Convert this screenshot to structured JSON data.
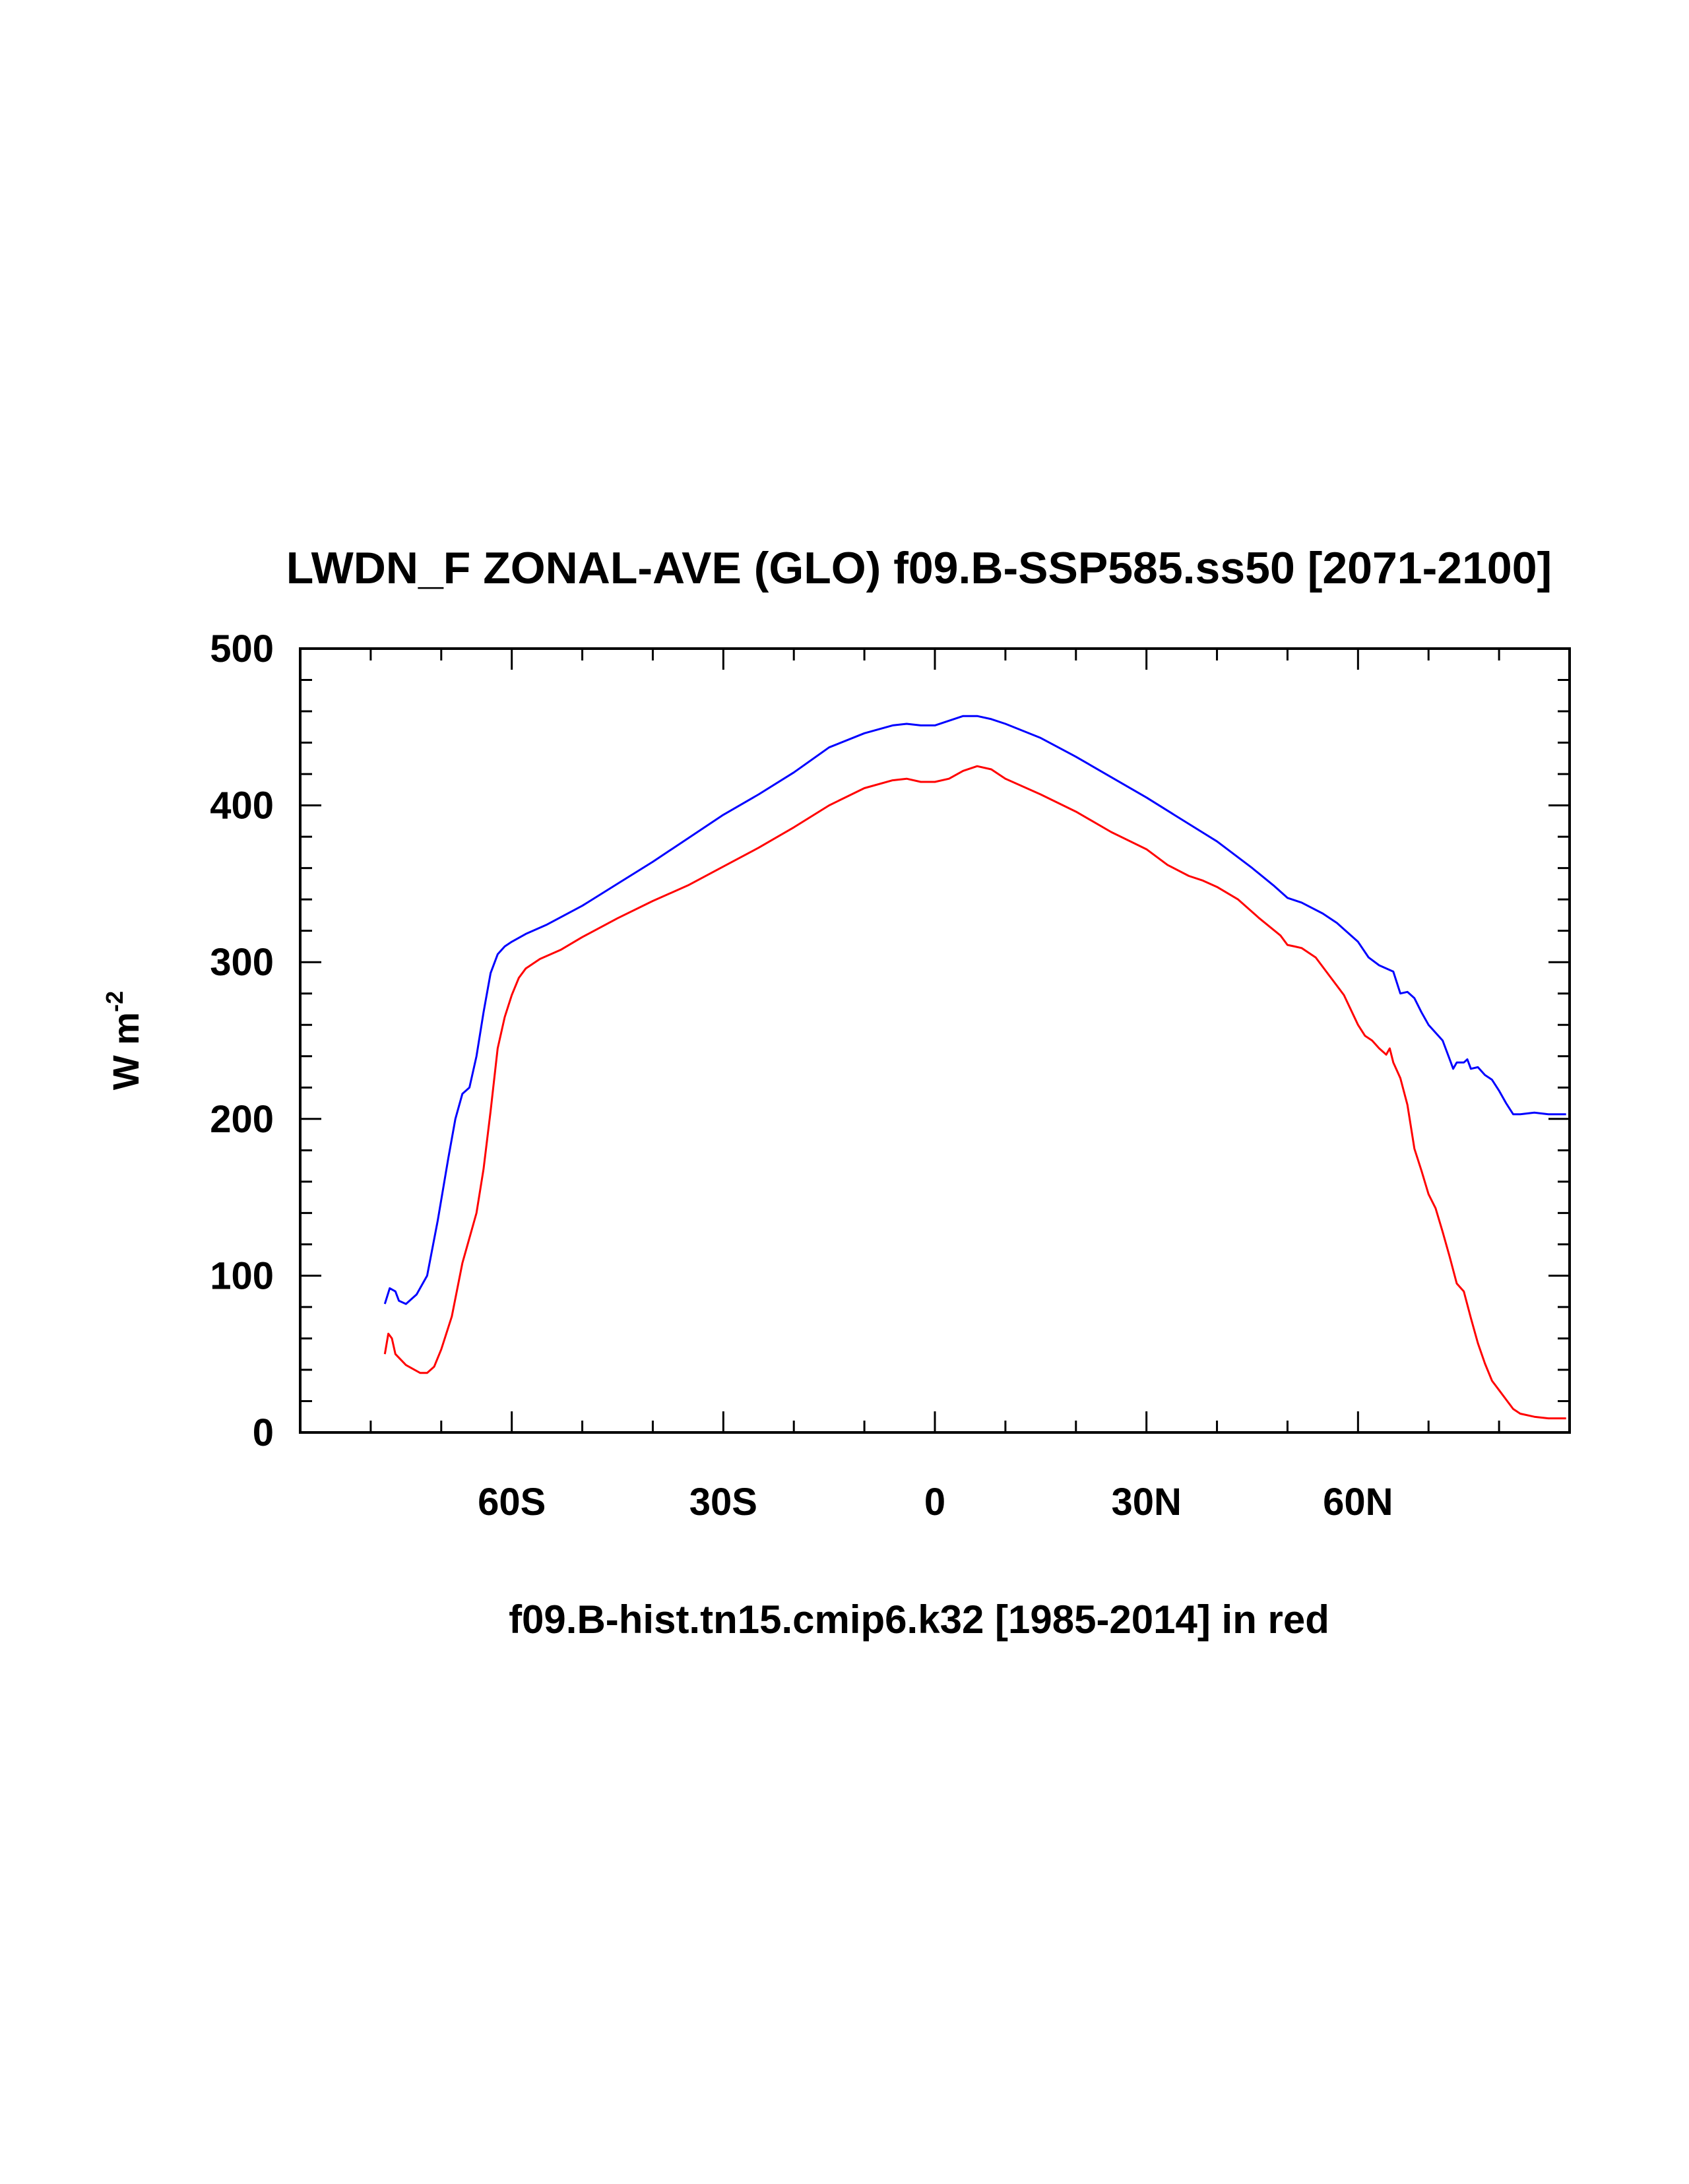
{
  "chart_data": {
    "type": "line",
    "title": "LWDN_F ZONAL-AVE (GLO) f09.B-SSP585.ss50 [2071-2100]",
    "xlabel": "f09.B-hist.tn15.cmip6.k32 [1985-2014] in red",
    "ylabel": "W m",
    "ylabel_superscript": "-2",
    "xlim": [
      -90,
      90
    ],
    "ylim": [
      0,
      500
    ],
    "xticks": [
      {
        "value": -60,
        "label": "60S"
      },
      {
        "value": -30,
        "label": "30S"
      },
      {
        "value": 0,
        "label": "0"
      },
      {
        "value": 30,
        "label": "30N"
      },
      {
        "value": 60,
        "label": "60N"
      }
    ],
    "yticks": [
      {
        "value": 0,
        "label": "0"
      },
      {
        "value": 100,
        "label": "100"
      },
      {
        "value": 200,
        "label": "200"
      },
      {
        "value": 300,
        "label": "300"
      },
      {
        "value": 400,
        "label": "400"
      },
      {
        "value": 500,
        "label": "500"
      }
    ],
    "grid": false,
    "series": [
      {
        "color": "#0000ff",
        "points": [
          [
            -78,
            82
          ],
          [
            -77.3,
            92
          ],
          [
            -76.5,
            90
          ],
          [
            -76,
            84
          ],
          [
            -75,
            82
          ],
          [
            -73.5,
            88
          ],
          [
            -72,
            100
          ],
          [
            -70.5,
            135
          ],
          [
            -69,
            175
          ],
          [
            -68,
            200
          ],
          [
            -67,
            216
          ],
          [
            -66,
            220
          ],
          [
            -65,
            240
          ],
          [
            -64,
            268
          ],
          [
            -63,
            293
          ],
          [
            -62,
            305
          ],
          [
            -61,
            310
          ],
          [
            -60,
            313
          ],
          [
            -58,
            318
          ],
          [
            -55,
            324
          ],
          [
            -50,
            336
          ],
          [
            -45,
            350
          ],
          [
            -40,
            364
          ],
          [
            -35,
            379
          ],
          [
            -30,
            394
          ],
          [
            -25,
            407
          ],
          [
            -20,
            421
          ],
          [
            -15,
            437
          ],
          [
            -10,
            446
          ],
          [
            -6,
            451
          ],
          [
            -4,
            452
          ],
          [
            -2,
            451
          ],
          [
            0,
            451
          ],
          [
            2,
            454
          ],
          [
            4,
            457
          ],
          [
            6,
            457
          ],
          [
            8,
            455
          ],
          [
            10,
            452
          ],
          [
            15,
            443
          ],
          [
            20,
            431
          ],
          [
            25,
            418
          ],
          [
            30,
            405
          ],
          [
            35,
            391
          ],
          [
            40,
            377
          ],
          [
            45,
            360
          ],
          [
            48,
            349
          ],
          [
            50,
            341
          ],
          [
            52,
            338
          ],
          [
            55,
            331
          ],
          [
            57,
            325
          ],
          [
            60,
            313
          ],
          [
            61.5,
            303
          ],
          [
            63,
            298
          ],
          [
            65,
            294
          ],
          [
            66,
            280
          ],
          [
            67,
            281
          ],
          [
            68,
            277
          ],
          [
            69,
            268
          ],
          [
            70,
            260
          ],
          [
            72,
            250
          ],
          [
            73,
            238
          ],
          [
            73.5,
            232
          ],
          [
            74,
            236
          ],
          [
            75,
            236
          ],
          [
            75.5,
            238
          ],
          [
            76,
            232
          ],
          [
            77,
            233
          ],
          [
            78,
            228
          ],
          [
            79,
            225
          ],
          [
            80,
            218
          ],
          [
            81,
            210
          ],
          [
            82,
            203
          ],
          [
            83,
            203
          ],
          [
            85,
            204
          ],
          [
            87,
            203
          ],
          [
            89.5,
            203
          ]
        ]
      },
      {
        "color": "#ff0000",
        "points": [
          [
            -78,
            50
          ],
          [
            -77.5,
            63
          ],
          [
            -77,
            60
          ],
          [
            -76.5,
            50
          ],
          [
            -75,
            43
          ],
          [
            -73,
            38
          ],
          [
            -72,
            38
          ],
          [
            -71,
            42
          ],
          [
            -70,
            53
          ],
          [
            -68.5,
            74
          ],
          [
            -67,
            108
          ],
          [
            -65,
            140
          ],
          [
            -64,
            168
          ],
          [
            -63,
            205
          ],
          [
            -62,
            245
          ],
          [
            -61,
            265
          ],
          [
            -60,
            279
          ],
          [
            -59,
            290
          ],
          [
            -58,
            296
          ],
          [
            -56,
            302
          ],
          [
            -53,
            308
          ],
          [
            -50,
            316
          ],
          [
            -45,
            328
          ],
          [
            -40,
            339
          ],
          [
            -35,
            349
          ],
          [
            -30,
            361
          ],
          [
            -25,
            373
          ],
          [
            -20,
            386
          ],
          [
            -15,
            400
          ],
          [
            -10,
            411
          ],
          [
            -6,
            416
          ],
          [
            -4,
            417
          ],
          [
            -2,
            415
          ],
          [
            0,
            415
          ],
          [
            2,
            417
          ],
          [
            4,
            422
          ],
          [
            6,
            425
          ],
          [
            8,
            423
          ],
          [
            10,
            417
          ],
          [
            15,
            407
          ],
          [
            20,
            396
          ],
          [
            25,
            383
          ],
          [
            30,
            372
          ],
          [
            33,
            362
          ],
          [
            36,
            355
          ],
          [
            38,
            352
          ],
          [
            40,
            348
          ],
          [
            43,
            340
          ],
          [
            46,
            328
          ],
          [
            49,
            317
          ],
          [
            50,
            311
          ],
          [
            51,
            310
          ],
          [
            52,
            309
          ],
          [
            54,
            303
          ],
          [
            56,
            291
          ],
          [
            58,
            279
          ],
          [
            60,
            260
          ],
          [
            61,
            253
          ],
          [
            62,
            250
          ],
          [
            63,
            245
          ],
          [
            64,
            241
          ],
          [
            64.5,
            245
          ],
          [
            65,
            236
          ],
          [
            66,
            226
          ],
          [
            67,
            209
          ],
          [
            68,
            181
          ],
          [
            69,
            167
          ],
          [
            70,
            152
          ],
          [
            71,
            143
          ],
          [
            72,
            128
          ],
          [
            73,
            112
          ],
          [
            74,
            95
          ],
          [
            75,
            90
          ],
          [
            76,
            73
          ],
          [
            77,
            57
          ],
          [
            78,
            44
          ],
          [
            79,
            33
          ],
          [
            80,
            27
          ],
          [
            81,
            21
          ],
          [
            82,
            15
          ],
          [
            83,
            12
          ],
          [
            85,
            10
          ],
          [
            87,
            9
          ],
          [
            89.5,
            9
          ]
        ]
      }
    ]
  }
}
